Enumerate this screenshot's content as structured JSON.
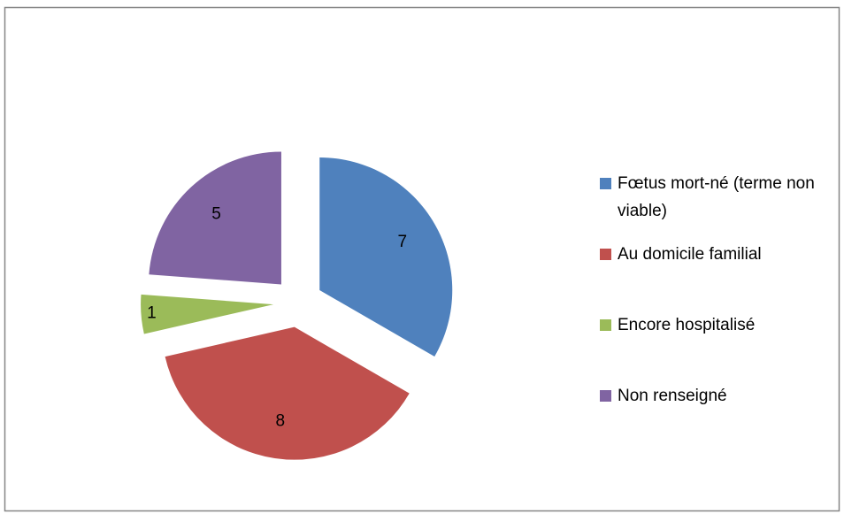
{
  "chart_data": {
    "type": "pie",
    "categories": [
      "Fœtus mort-né (terme non viable)",
      "Au domicile familial",
      "Encore hospitalisé",
      "Non renseigné"
    ],
    "values": [
      7,
      8,
      1,
      5
    ],
    "colors": [
      "#4f81bd",
      "#c0504d",
      "#9bbb59",
      "#8064a2"
    ],
    "legend": "right"
  }
}
